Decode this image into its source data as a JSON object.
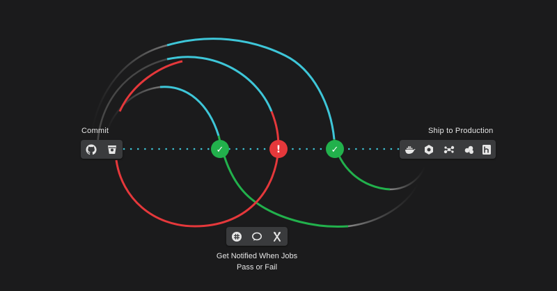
{
  "labels": {
    "commit": "Commit",
    "ship": "Ship to Production",
    "notify_line1": "Get Notified When Jobs",
    "notify_line2": "Pass or Fail"
  },
  "nodes": [
    {
      "status": "pass",
      "glyph": "✓",
      "color": "#22b14c"
    },
    {
      "status": "fail",
      "glyph": "!",
      "color": "#e5383b"
    },
    {
      "status": "pass",
      "glyph": "✓",
      "color": "#22b14c"
    }
  ],
  "commit_icons": [
    "github-icon",
    "bitbucket-icon"
  ],
  "ship_icons": [
    "docker-icon",
    "hexagon-icon",
    "cluster-icon",
    "cloud-icon",
    "heroku-icon"
  ],
  "notify_icons": [
    "slack-icon",
    "chat-icon",
    "hipchat-icon"
  ],
  "colors": {
    "background": "#1b1b1c",
    "cyan": "#3ec6d8",
    "green": "#22b14c",
    "red": "#e5383b",
    "dots": "#3ec6d8",
    "panel": "#3a3b3d"
  }
}
